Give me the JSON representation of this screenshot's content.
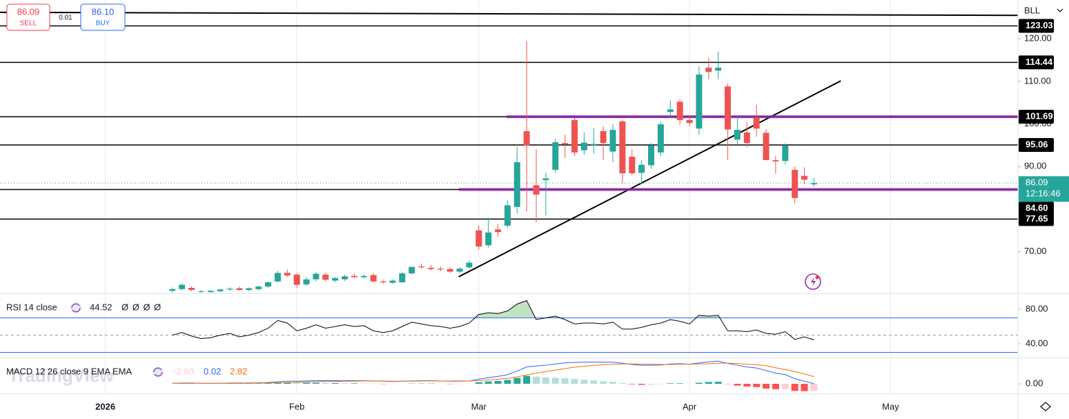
{
  "toolbar": {
    "sell_price": "86.09",
    "sell": "SELL",
    "spread": "0.01",
    "buy_price": "86.10",
    "buy": "BUY",
    "symbol": "BLL"
  },
  "price_chart": {
    "type": "candlestick",
    "x": [
      7,
      8,
      9,
      10,
      11,
      12,
      13,
      14,
      15,
      16,
      17,
      18,
      19,
      20,
      21,
      22,
      23,
      24,
      25,
      26,
      27,
      28,
      29,
      30,
      31,
      32,
      33,
      34,
      35,
      36,
      37,
      38,
      39,
      40,
      41,
      42,
      43,
      44,
      45,
      46,
      47,
      48,
      49,
      50,
      51,
      52,
      53,
      54,
      55,
      56,
      57,
      58,
      59,
      60,
      61,
      62,
      63,
      64,
      65,
      66,
      67,
      68,
      69,
      70,
      71,
      72,
      73,
      74
    ],
    "open": [
      60.8,
      61.2,
      61.5,
      60.6,
      60.5,
      60.7,
      61.1,
      61.4,
      61.0,
      61.2,
      61.8,
      63.0,
      65.0,
      64.6,
      62.3,
      63.5,
      64.6,
      63.2,
      63.5,
      64.3,
      64.0,
      64.5,
      63.0,
      62.7,
      62.8,
      64.9,
      66.5,
      66.2,
      66.0,
      65.9,
      65.3,
      66.3,
      75.0,
      71.5,
      75.2,
      76.1,
      80.5,
      98.3,
      85.6,
      86.8,
      89.2,
      95.5,
      100.9,
      93.8,
      95.0,
      98.3,
      93.5,
      100.6,
      92.3,
      88.5,
      90.3,
      93.3,
      102.8,
      105.2,
      100.9,
      98.9,
      113.2,
      112.5,
      108.8,
      96.3,
      98.0,
      101.5,
      97.9,
      91.5,
      91.3,
      89.2,
      87.8,
      85.8
    ],
    "high": [
      61.6,
      62.6,
      61.8,
      61.0,
      60.9,
      61.3,
      61.6,
      61.8,
      61.6,
      62.0,
      63.0,
      65.5,
      65.8,
      65.0,
      64.0,
      65.2,
      65.0,
      64.0,
      64.6,
      64.8,
      64.6,
      65.0,
      63.4,
      63.5,
      65.2,
      66.6,
      67.2,
      66.9,
      66.6,
      66.3,
      66.3,
      68.0,
      76.2,
      78.0,
      76.5,
      82.0,
      94.5,
      119.5,
      94.0,
      88.5,
      96.5,
      97.5,
      101.5,
      98.0,
      99.0,
      99.5,
      100.0,
      101.0,
      94.0,
      91.5,
      95.5,
      100.5,
      105.5,
      105.8,
      102.0,
      113.5,
      115.5,
      117.0,
      109.5,
      101.8,
      100.5,
      104.5,
      98.8,
      92.5,
      95.5,
      90.0,
      89.8,
      87.3
    ],
    "low": [
      60.4,
      60.9,
      60.7,
      60.3,
      60.3,
      60.5,
      60.8,
      60.9,
      60.7,
      60.9,
      61.5,
      62.8,
      64.0,
      61.5,
      61.9,
      63.0,
      63.0,
      62.8,
      63.1,
      63.8,
      63.7,
      62.8,
      62.5,
      62.4,
      62.6,
      64.6,
      66.0,
      65.6,
      65.4,
      65.0,
      64.9,
      66.0,
      70.5,
      71.0,
      73.5,
      75.5,
      79.0,
      79.5,
      76.9,
      78.5,
      88.5,
      92.0,
      92.5,
      92.8,
      93.0,
      91.5,
      91.0,
      86.0,
      88.0,
      86.0,
      89.5,
      92.5,
      101.5,
      99.8,
      99.5,
      97.5,
      110.5,
      110.5,
      91.5,
      95.0,
      94.5,
      97.0,
      91.5,
      88.3,
      90.5,
      81.3,
      85.8,
      85.3
    ],
    "close": [
      61.2,
      62.2,
      61.0,
      60.7,
      60.8,
      61.1,
      61.3,
      61.0,
      61.4,
      61.8,
      62.8,
      65.0,
      64.4,
      62.2,
      63.5,
      64.8,
      63.4,
      63.8,
      64.2,
      64.0,
      64.3,
      63.0,
      62.8,
      63.2,
      64.9,
      66.4,
      66.3,
      65.9,
      65.8,
      65.3,
      66.0,
      67.4,
      71.2,
      74.5,
      74.6,
      80.9,
      91.0,
      94.9,
      83.4,
      87.2,
      95.7,
      95.2,
      93.3,
      95.6,
      95.3,
      95.5,
      98.6,
      88.4,
      88.4,
      90.4,
      94.9,
      99.9,
      103.4,
      100.9,
      100.2,
      111.6,
      112.2,
      113.2,
      98.7,
      98.6,
      95.5,
      98.9,
      91.5,
      91.2,
      95.0,
      82.6,
      86.9,
      86.09
    ],
    "up_color": "#26a69a",
    "down_color": "#ef5350",
    "xlim": [
      -11,
      95.3
    ],
    "xticks": [
      {
        "value": 0,
        "label": "2026"
      },
      {
        "value": 20,
        "label": "Feb"
      },
      {
        "value": 39,
        "label": "Mar"
      },
      {
        "value": 61,
        "label": "Apr"
      },
      {
        "value": 82,
        "label": "May"
      }
    ],
    "ylim": [
      60.2,
      129.1
    ],
    "yticks": [
      {
        "value": 120,
        "label": "120.00"
      },
      {
        "value": 110,
        "label": "110.00"
      },
      {
        "value": 100,
        "label": "100.00"
      },
      {
        "value": 90,
        "label": "90.00"
      },
      {
        "value": 70,
        "label": "70.00"
      }
    ],
    "levels": [
      {
        "value": 123.03,
        "label": "123.03"
      },
      {
        "value": 114.44,
        "label": "114.44"
      },
      {
        "value": 101.69,
        "label": "101.69"
      },
      {
        "value": 95.06,
        "label": "95.06"
      },
      {
        "value": 84.6,
        "label": "84.60"
      },
      {
        "value": 77.65,
        "label": "77.65"
      }
    ],
    "level_color": "#000000",
    "zones": [
      {
        "value": 101.69,
        "from": 41.9
      },
      {
        "value": 84.6,
        "from": 36.9
      }
    ],
    "zone_color": "#8e24aa",
    "trend_lines": [
      {
        "x": [
          -11,
          95.3
        ],
        "y": [
          126.2,
          125.5
        ]
      },
      {
        "x": [
          36.9,
          76.8
        ],
        "y": [
          64.1,
          110.1
        ]
      }
    ],
    "last_price": {
      "value": 86.09,
      "label": "86.09",
      "countdown": "12:16:46"
    }
  },
  "rsi": {
    "type": "line",
    "title": "RSI 14 close",
    "value": "44.52",
    "extras": "Ø Ø Ø Ø",
    "values": [
      50,
      53,
      49,
      46,
      47,
      50,
      52,
      48,
      50,
      53,
      58,
      67,
      64,
      55,
      58,
      62,
      58,
      60,
      62,
      60,
      61,
      55,
      53,
      55,
      60,
      65,
      63,
      61,
      60,
      58,
      60,
      64,
      74,
      76,
      75,
      78,
      86,
      90,
      68,
      70,
      72,
      68,
      63,
      64,
      64,
      63,
      65,
      57,
      57,
      59,
      62,
      64,
      68,
      66,
      63,
      73,
      72,
      73,
      55,
      55,
      54,
      56,
      52,
      51,
      54,
      45,
      48,
      44.52
    ],
    "color": "#000000",
    "ylim": [
      24,
      98.4
    ],
    "yticks": [
      {
        "value": 80,
        "label": "80.00"
      },
      {
        "value": 40,
        "label": "40.00"
      }
    ],
    "bands": [
      70,
      30
    ],
    "midline": 50,
    "band_color": "#2962ff",
    "fill_color": "#4caf50"
  },
  "macd": {
    "type": "macd",
    "title": "MACD 12 26 close 9 EMA EMA",
    "histogram_label": "−2.80",
    "macd_label": "0.02",
    "signal_label": "2.82",
    "macd_values": [
      0.2,
      0.3,
      0.3,
      0.2,
      0.2,
      0.2,
      0.3,
      0.3,
      0.3,
      0.4,
      0.5,
      0.8,
      1.0,
      1.0,
      1.1,
      1.2,
      1.2,
      1.2,
      1.2,
      1.2,
      1.2,
      1.1,
      1.0,
      0.9,
      1.0,
      1.1,
      1.2,
      1.2,
      1.1,
      1.0,
      1.0,
      1.1,
      1.8,
      2.4,
      2.9,
      3.6,
      5.0,
      6.6,
      7.0,
      7.3,
      7.8,
      8.2,
      8.4,
      8.5,
      8.5,
      8.5,
      8.5,
      8.1,
      7.6,
      7.3,
      7.3,
      7.4,
      7.8,
      7.9,
      7.7,
      8.2,
      8.6,
      8.9,
      8.0,
      7.3,
      6.6,
      6.2,
      5.2,
      4.2,
      3.6,
      2.0,
      1.0,
      0.02
    ],
    "signal_values": [
      0.2,
      0.2,
      0.2,
      0.2,
      0.2,
      0.2,
      0.2,
      0.2,
      0.2,
      0.3,
      0.3,
      0.4,
      0.5,
      0.6,
      0.7,
      0.8,
      0.9,
      0.9,
      1.0,
      1.0,
      1.1,
      1.1,
      1.1,
      1.0,
      1.0,
      1.0,
      1.1,
      1.1,
      1.1,
      1.1,
      1.1,
      1.1,
      1.2,
      1.5,
      1.8,
      2.1,
      2.7,
      3.5,
      4.2,
      4.8,
      5.4,
      6.0,
      6.5,
      6.9,
      7.2,
      7.5,
      7.7,
      7.8,
      7.8,
      7.7,
      7.7,
      7.6,
      7.6,
      7.7,
      7.7,
      7.8,
      7.9,
      8.1,
      8.1,
      8.0,
      7.7,
      7.5,
      7.1,
      6.3,
      5.6,
      4.8,
      3.9,
      2.82
    ],
    "histogram": [
      0,
      0.1,
      0.1,
      0,
      0,
      0,
      0.1,
      0.1,
      0.1,
      0.1,
      0.2,
      0.4,
      0.5,
      0.4,
      0.4,
      0.4,
      0.3,
      0.3,
      0.2,
      0.2,
      0.1,
      0,
      -0.1,
      -0.1,
      0,
      0.1,
      0.1,
      0.1,
      0,
      -0.1,
      -0.1,
      0,
      0.6,
      0.9,
      1.1,
      1.5,
      2.3,
      3.1,
      2.8,
      2.5,
      2.4,
      2.2,
      1.9,
      1.6,
      1.3,
      1.0,
      0.8,
      0.3,
      -0.2,
      -0.4,
      -0.4,
      -0.2,
      0.2,
      0.2,
      0,
      0.4,
      0.7,
      0.8,
      -0.1,
      -0.7,
      -1.1,
      -1.3,
      -1.9,
      -2.1,
      -2.0,
      -2.8,
      -2.9,
      -2.8
    ],
    "macd_color": "#2962ff",
    "signal_color": "#ff6d00",
    "ylim": [
      -3.8,
      10.3
    ],
    "yticks": [
      {
        "value": 0,
        "label": "0.00"
      }
    ]
  },
  "watermark": "TradingView"
}
